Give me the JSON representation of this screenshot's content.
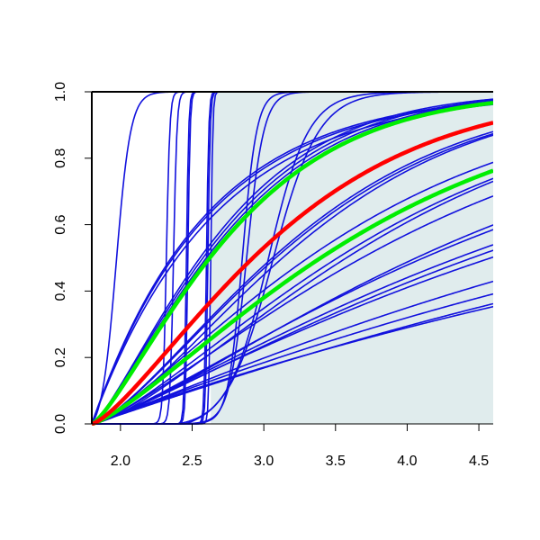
{
  "chart_data": {
    "type": "line",
    "title": "",
    "xlabel": "",
    "ylabel": "",
    "xlim": [
      1.8,
      4.6
    ],
    "ylim": [
      0.0,
      1.0
    ],
    "x_ticks": [
      "2.0",
      "2.5",
      "3.0",
      "3.5",
      "4.0",
      "4.5"
    ],
    "y_ticks": [
      "0.0",
      "0.2",
      "0.4",
      "0.6",
      "0.8",
      "1.0"
    ],
    "grid": false,
    "legend": "none",
    "shaded_region": {
      "x_from": 2.63,
      "x_to": 4.6,
      "color": "#e0eced"
    },
    "colors": {
      "blue": "#1111dd",
      "green": "#00ee00",
      "red": "#ff0000",
      "axis": "#000000"
    },
    "step_curves": [
      {
        "center": 1.97,
        "width": 0.05,
        "start": 1.8
      },
      {
        "center": 2.32,
        "width": 0.012,
        "start": 2.18
      },
      {
        "center": 2.37,
        "width": 0.012,
        "start": 2.2
      },
      {
        "center": 2.46,
        "width": 0.008,
        "start": 2.33
      },
      {
        "center": 2.47,
        "width": 0.008,
        "start": 2.36
      },
      {
        "center": 2.6,
        "width": 0.008,
        "start": 2.5
      },
      {
        "center": 2.61,
        "width": 0.008,
        "start": 2.5
      },
      {
        "center": 2.63,
        "width": 0.007,
        "start": 2.53
      },
      {
        "center": 2.85,
        "width": 0.05,
        "start": 2.25
      },
      {
        "center": 2.88,
        "width": 0.06,
        "start": 2.3
      },
      {
        "center": 3.03,
        "width": 0.14,
        "start": 2.4
      },
      {
        "center": 3.06,
        "width": 0.16,
        "start": 2.45
      }
    ],
    "ramp_curves_blue": [
      {
        "k": 2.2,
        "p": 1.0
      },
      {
        "k": 2.1,
        "p": 1.0
      },
      {
        "k": 2.25,
        "p": 1.0
      },
      {
        "k": 1.8,
        "p": 1.3
      },
      {
        "k": 1.75,
        "p": 1.3
      },
      {
        "k": 1.7,
        "p": 1.3
      },
      {
        "k": 1.1,
        "p": 1.4
      },
      {
        "k": 1.05,
        "p": 1.45
      },
      {
        "k": 1.08,
        "p": 1.4
      },
      {
        "k": 0.9,
        "p": 1.3
      },
      {
        "k": 0.85,
        "p": 1.3
      },
      {
        "k": 0.8,
        "p": 1.35
      },
      {
        "k": 0.78,
        "p": 1.4
      },
      {
        "k": 0.72,
        "p": 1.3
      },
      {
        "k": 0.6,
        "p": 1.3
      },
      {
        "k": 0.58,
        "p": 1.25
      },
      {
        "k": 0.52,
        "p": 1.2
      },
      {
        "k": 0.5,
        "p": 1.2
      },
      {
        "k": 0.47,
        "p": 1.15
      },
      {
        "k": 0.38,
        "p": 1.1
      },
      {
        "k": 0.33,
        "p": 1.05
      },
      {
        "k": 0.3,
        "p": 1.05
      },
      {
        "k": 0.28,
        "p": 1.0
      }
    ],
    "ramp_curves_green": [
      {
        "k": 1.65,
        "p": 1.3
      },
      {
        "k": 0.85,
        "p": 1.3
      }
    ],
    "ramp_curves_red": [
      {
        "k": 1.22,
        "p": 1.35
      }
    ]
  }
}
